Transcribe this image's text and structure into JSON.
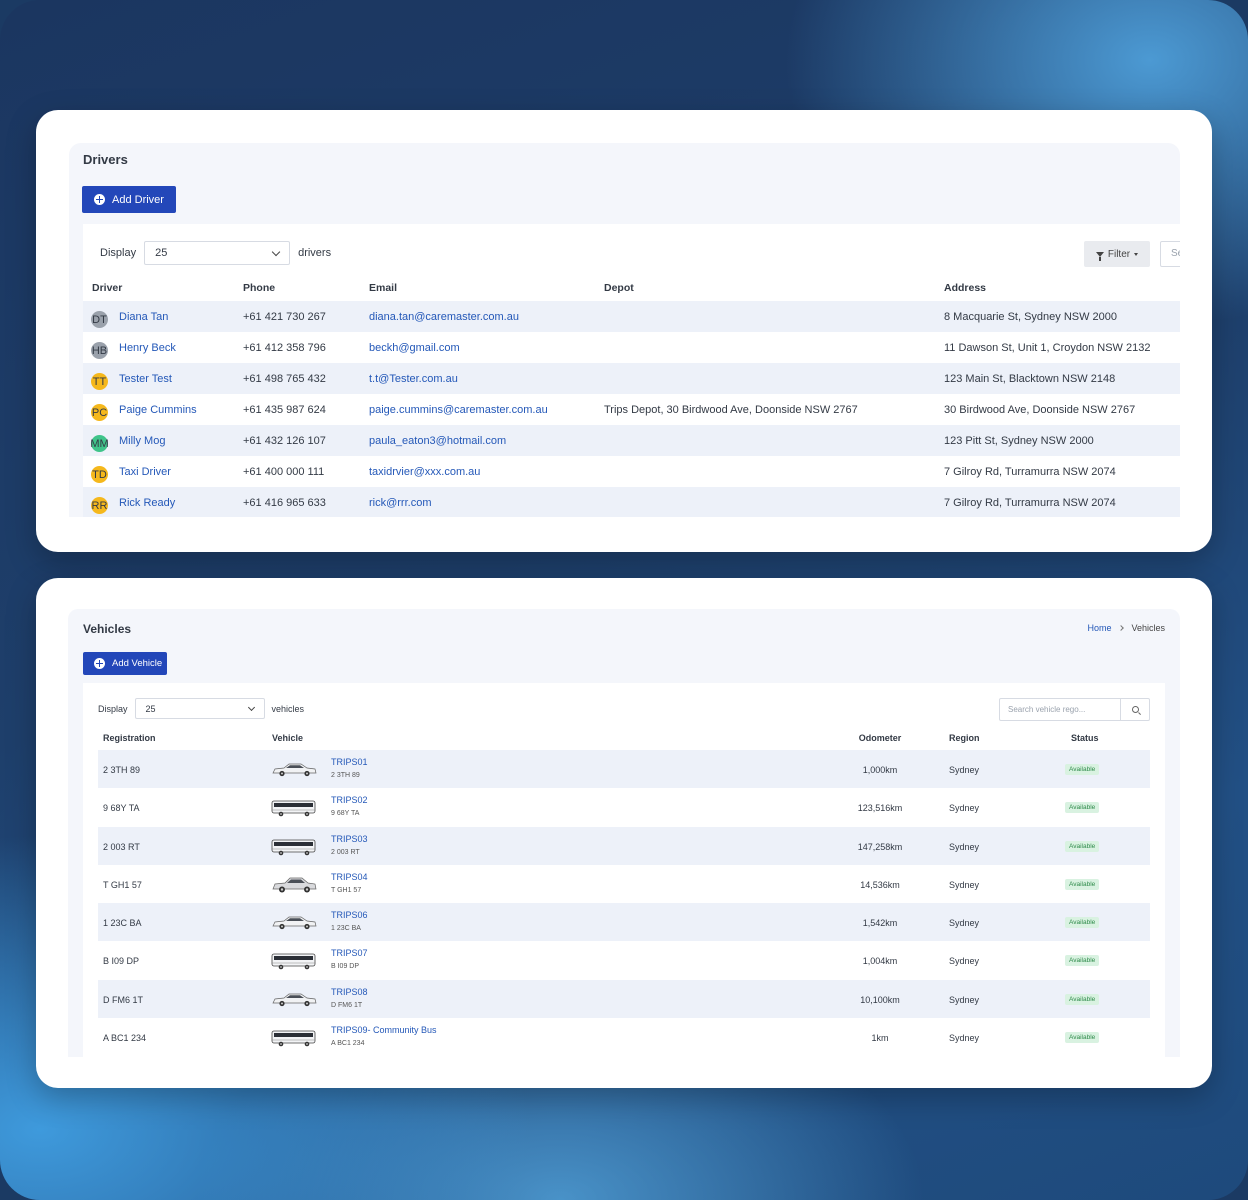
{
  "drivers": {
    "title": "Drivers",
    "add_label": "Add Driver",
    "display_label": "Display",
    "display_value": "25",
    "display_suffix": "drivers",
    "filter_label": "Filter",
    "search_placeholder": "Se",
    "columns": [
      "Driver",
      "Phone",
      "Email",
      "Depot",
      "Address"
    ],
    "rows": [
      {
        "initials": "DT",
        "avatar_color": "#9aa1ab",
        "name": "Diana Tan",
        "phone": "+61 421 730 267",
        "email": "diana.tan@caremaster.com.au",
        "depot": "",
        "address": "8 Macquarie St, Sydney NSW 2000"
      },
      {
        "initials": "HB",
        "avatar_color": "#9aa1ab",
        "name": "Henry Beck",
        "phone": "+61 412 358 796",
        "email": "beckh@gmail.com",
        "depot": "",
        "address": "11 Dawson St, Unit 1, Croydon NSW 2132"
      },
      {
        "initials": "TT",
        "avatar_color": "#f5b81c",
        "name": "Tester Test",
        "phone": "+61 498 765 432",
        "email": "t.t@Tester.com.au",
        "depot": "",
        "address": "123 Main St, Blacktown NSW 2148"
      },
      {
        "initials": "PC",
        "avatar_color": "#f5b81c",
        "name": "Paige Cummins",
        "phone": "+61 435 987 624",
        "email": "paige.cummins@caremaster.com.au",
        "depot": "Trips Depot, 30 Birdwood Ave, Doonside NSW 2767",
        "address": "30 Birdwood Ave, Doonside NSW 2767"
      },
      {
        "initials": "MM",
        "avatar_color": "#3fc48a",
        "name": "Milly Mog",
        "phone": "+61 432 126 107",
        "email": "paula_eaton3@hotmail.com",
        "depot": "",
        "address": "123 Pitt St, Sydney NSW 2000"
      },
      {
        "initials": "TD",
        "avatar_color": "#f5b81c",
        "name": "Taxi Driver",
        "phone": "+61 400 000 111",
        "email": "taxidrvier@xxx.com.au",
        "depot": "",
        "address": "7 Gilroy Rd, Turramurra NSW 2074"
      },
      {
        "initials": "RR",
        "avatar_color": "#f5b81c",
        "name": "Rick Ready",
        "phone": "+61 416 965 633",
        "email": "rick@rrr.com",
        "depot": "",
        "address": "7 Gilroy Rd, Turramurra NSW 2074"
      }
    ]
  },
  "vehicles": {
    "title": "Vehicles",
    "breadcrumb": [
      "Home",
      "Vehicles"
    ],
    "add_label": "Add Vehicle",
    "display_label": "Display",
    "display_value": "25",
    "display_suffix": "vehicles",
    "search_placeholder": "Search vehicle rego...",
    "columns": [
      "Registration",
      "Vehicle",
      "Odometer",
      "Region",
      "Status"
    ],
    "rows": [
      {
        "rego": "2 3TH 89",
        "type": "car",
        "name": "TRIPS01",
        "sub": "2 3TH 89",
        "odometer": "1,000km",
        "region": "Sydney",
        "status": "Available"
      },
      {
        "rego": "9 68Y TA",
        "type": "bus",
        "name": "TRIPS02",
        "sub": "9 68Y TA",
        "odometer": "123,516km",
        "region": "Sydney",
        "status": "Available"
      },
      {
        "rego": "2 003 RT",
        "type": "bus",
        "name": "TRIPS03",
        "sub": "2 003 RT",
        "odometer": "147,258km",
        "region": "Sydney",
        "status": "Available"
      },
      {
        "rego": "T GH1 57",
        "type": "car2",
        "name": "TRIPS04",
        "sub": "T GH1 57",
        "odometer": "14,536km",
        "region": "Sydney",
        "status": "Available"
      },
      {
        "rego": "1 23C BA",
        "type": "car",
        "name": "TRIPS06",
        "sub": "1 23C BA",
        "odometer": "1,542km",
        "region": "Sydney",
        "status": "Available"
      },
      {
        "rego": "B I09 DP",
        "type": "bus",
        "name": "TRIPS07",
        "sub": "B I09 DP",
        "odometer": "1,004km",
        "region": "Sydney",
        "status": "Available"
      },
      {
        "rego": "D FM6 1T",
        "type": "car",
        "name": "TRIPS08",
        "sub": "D FM6 1T",
        "odometer": "10,100km",
        "region": "Sydney",
        "status": "Available"
      },
      {
        "rego": "A BC1 234",
        "type": "bus",
        "name": "TRIPS09- Community Bus",
        "sub": "A BC1 234",
        "odometer": "1km",
        "region": "Sydney",
        "status": "Available"
      }
    ]
  }
}
